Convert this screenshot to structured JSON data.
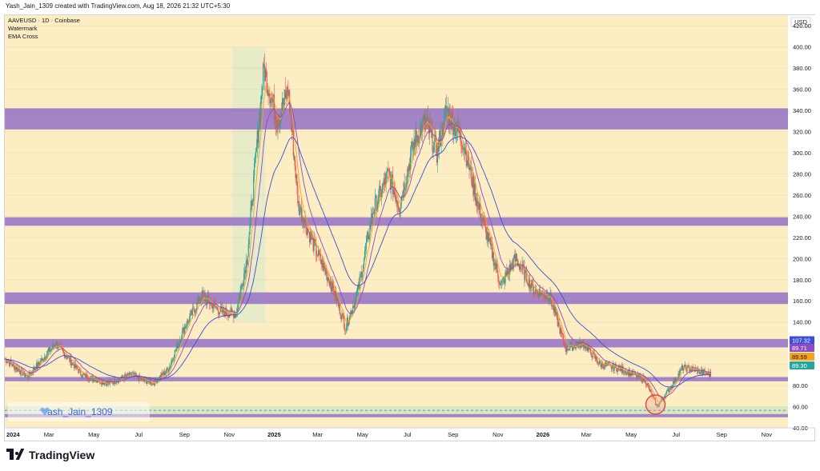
{
  "header": {
    "credit": "Yash_Jain_1309 created with TradingView.com, Aug 18, 2026 21:32 UTC+5:30"
  },
  "legend": {
    "symbol": "AAVEUSD · 1D · Coinbase",
    "line2": "Watermark",
    "line3": "EMA Cross"
  },
  "watermark": {
    "text": "Yash_Jain_1309",
    "icon": "heart-icon"
  },
  "footer": {
    "brand": "TradingView",
    "logo": "tradingview-logo"
  },
  "colors": {
    "background": "#fcedc2",
    "zone": "#9c7bc7",
    "ema_fast": "#f7a21b",
    "ema_slow": "#8e4bc2",
    "ema_long": "#3b4fd9",
    "candle_up": "#26a69a",
    "candle_down": "#ef5350",
    "support_green": "#cde6c8"
  },
  "chart_data": {
    "type": "candlestick",
    "symbol": "AAVEUSD",
    "timeframe": "1D",
    "exchange": "Coinbase",
    "currency": "USD",
    "ylim": [
      40,
      430
    ],
    "y_ticks": [
      40,
      60,
      80,
      100,
      120,
      140,
      160,
      180,
      200,
      220,
      240,
      260,
      280,
      300,
      320,
      340,
      360,
      380,
      400,
      420
    ],
    "x_ticks": [
      "2024",
      "Mar",
      "May",
      "Jul",
      "Sep",
      "Nov",
      "2025",
      "Mar",
      "May",
      "Jul",
      "Sep",
      "Nov",
      "2026",
      "Mar",
      "May",
      "Jul",
      "Sep",
      "Nov"
    ],
    "x_range": [
      "2024-01-01",
      "2026-11-30"
    ],
    "price_path": [
      [
        "2024-01-01",
        105
      ],
      [
        "2024-02-01",
        88
      ],
      [
        "2024-03-10",
        120
      ],
      [
        "2024-04-15",
        90
      ],
      [
        "2024-05-20",
        82
      ],
      [
        "2024-06-20",
        90
      ],
      [
        "2024-07-20",
        82
      ],
      [
        "2024-08-10",
        95
      ],
      [
        "2024-09-01",
        135
      ],
      [
        "2024-09-25",
        165
      ],
      [
        "2024-10-20",
        150
      ],
      [
        "2024-11-10",
        148
      ],
      [
        "2024-11-25",
        200
      ],
      [
        "2024-12-10",
        320
      ],
      [
        "2024-12-18",
        380
      ],
      [
        "2025-01-05",
        330
      ],
      [
        "2025-01-20",
        360
      ],
      [
        "2025-02-03",
        250
      ],
      [
        "2025-02-25",
        210
      ],
      [
        "2025-03-20",
        175
      ],
      [
        "2025-04-08",
        135
      ],
      [
        "2025-04-25",
        170
      ],
      [
        "2025-05-15",
        245
      ],
      [
        "2025-06-05",
        280
      ],
      [
        "2025-06-20",
        250
      ],
      [
        "2025-07-10",
        310
      ],
      [
        "2025-07-25",
        330
      ],
      [
        "2025-08-10",
        300
      ],
      [
        "2025-08-23",
        340
      ],
      [
        "2025-09-15",
        310
      ],
      [
        "2025-10-05",
        250
      ],
      [
        "2025-10-20",
        215
      ],
      [
        "2025-11-05",
        175
      ],
      [
        "2025-11-25",
        200
      ],
      [
        "2025-12-20",
        170
      ],
      [
        "2026-01-10",
        165
      ],
      [
        "2026-02-01",
        115
      ],
      [
        "2026-02-25",
        120
      ],
      [
        "2026-03-20",
        100
      ],
      [
        "2026-04-20",
        95
      ],
      [
        "2026-05-20",
        85
      ],
      [
        "2026-06-05",
        60
      ],
      [
        "2026-06-25",
        80
      ],
      [
        "2026-07-10",
        97
      ],
      [
        "2026-07-25",
        95
      ],
      [
        "2026-08-18",
        90
      ]
    ],
    "price_labels": [
      {
        "value": 107.32,
        "color": "#3b4fd9"
      },
      {
        "value": 89.71,
        "color": "#8e4bc2"
      },
      {
        "value": 89.59,
        "color": "#f7a21b"
      },
      {
        "value": 89.3,
        "color": "#26a69a"
      }
    ],
    "horizontal_zones": [
      {
        "from": 322,
        "to": 342
      },
      {
        "from": 231,
        "to": 239
      },
      {
        "from": 157,
        "to": 168
      },
      {
        "from": 116,
        "to": 124
      },
      {
        "from": 84,
        "to": 88
      },
      {
        "from": 50,
        "to": 53
      }
    ],
    "support_band": {
      "from": 53,
      "to": 60
    },
    "highlight_circle": {
      "date": "2026-06-03",
      "value": 62
    },
    "shaded_box": {
      "from": "2024-11-05",
      "to": "2024-12-20",
      "low": 140,
      "high": 400
    }
  }
}
